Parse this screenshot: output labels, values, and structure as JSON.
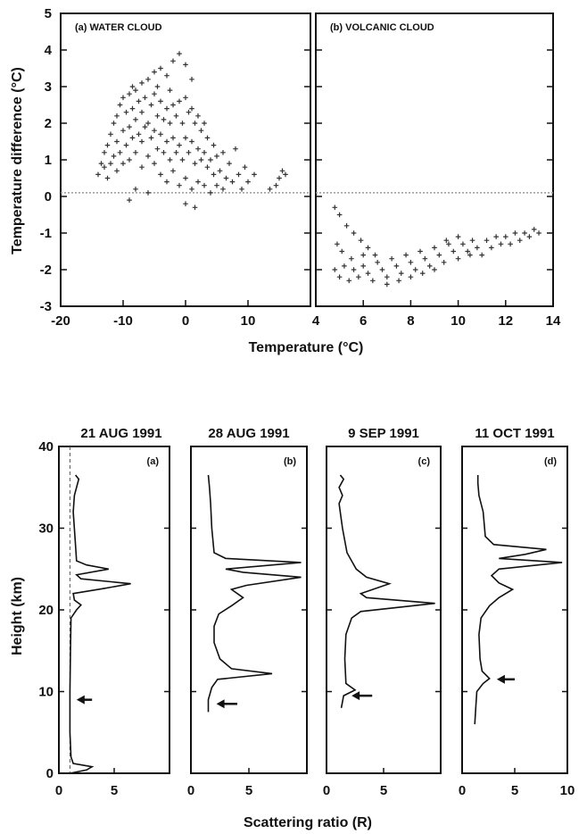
{
  "chart_data": [
    {
      "type": "scatter",
      "panel": "(a) WATER CLOUD",
      "xlim": [
        -20,
        20
      ],
      "ylim": [
        -3,
        5
      ],
      "xticks": [
        "-20",
        "-10",
        "0",
        "10"
      ],
      "yticks": [
        "-3",
        "-2",
        "-1",
        "0",
        "1",
        "2",
        "3",
        "4",
        "5"
      ],
      "xlabel": "Temperature (°C)",
      "ylabel": "Temperature difference (°C)",
      "reference_line_y": 0.1,
      "points": [
        [
          -14,
          0.6
        ],
        [
          -13.5,
          0.9
        ],
        [
          -13,
          0.8
        ],
        [
          -13,
          1.2
        ],
        [
          -12.5,
          0.5
        ],
        [
          -12.5,
          1.4
        ],
        [
          -12,
          0.9
        ],
        [
          -12,
          1.7
        ],
        [
          -11.5,
          1.1
        ],
        [
          -11.5,
          2.0
        ],
        [
          -11,
          0.7
        ],
        [
          -11,
          1.5
        ],
        [
          -11,
          2.2
        ],
        [
          -10.5,
          1.2
        ],
        [
          -10.5,
          2.5
        ],
        [
          -10,
          0.9
        ],
        [
          -10,
          1.8
        ],
        [
          -10,
          2.7
        ],
        [
          -9.5,
          1.4
        ],
        [
          -9.5,
          2.3
        ],
        [
          -9,
          1.0
        ],
        [
          -9,
          1.9
        ],
        [
          -9,
          2.8
        ],
        [
          -8.5,
          1.6
        ],
        [
          -8.5,
          2.4
        ],
        [
          -8.5,
          3.0
        ],
        [
          -8,
          0.2
        ],
        [
          -8,
          1.2
        ],
        [
          -8,
          2.1
        ],
        [
          -8,
          2.9
        ],
        [
          -7.5,
          1.7
        ],
        [
          -7.5,
          2.6
        ],
        [
          -7,
          0.8
        ],
        [
          -7,
          1.5
        ],
        [
          -7,
          2.3
        ],
        [
          -7,
          3.1
        ],
        [
          -6.5,
          1.9
        ],
        [
          -6.5,
          2.7
        ],
        [
          -6,
          1.1
        ],
        [
          -6,
          2.0
        ],
        [
          -6,
          3.2
        ],
        [
          -5.5,
          1.6
        ],
        [
          -5.5,
          2.5
        ],
        [
          -5,
          0.9
        ],
        [
          -5,
          1.8
        ],
        [
          -5,
          2.8
        ],
        [
          -5,
          3.4
        ],
        [
          -4.5,
          1.3
        ],
        [
          -4.5,
          2.2
        ],
        [
          -4.5,
          3.0
        ],
        [
          -4,
          0.6
        ],
        [
          -4,
          1.7
        ],
        [
          -4,
          2.6
        ],
        [
          -4,
          3.5
        ],
        [
          -3.5,
          1.2
        ],
        [
          -3.5,
          2.1
        ],
        [
          -3,
          0.4
        ],
        [
          -3,
          1.5
        ],
        [
          -3,
          2.4
        ],
        [
          -3,
          3.3
        ],
        [
          -2.5,
          1.0
        ],
        [
          -2.5,
          2.0
        ],
        [
          -2.5,
          2.9
        ],
        [
          -2,
          0.7
        ],
        [
          -2,
          1.6
        ],
        [
          -2,
          2.5
        ],
        [
          -2,
          3.7
        ],
        [
          -1.5,
          1.2
        ],
        [
          -1.5,
          2.2
        ],
        [
          -1,
          0.3
        ],
        [
          -1,
          1.4
        ],
        [
          -1,
          2.6
        ],
        [
          -1,
          3.9
        ],
        [
          -0.5,
          1.0
        ],
        [
          -0.5,
          2.0
        ],
        [
          0,
          0.5
        ],
        [
          0,
          1.6
        ],
        [
          0,
          2.7
        ],
        [
          0,
          3.6
        ],
        [
          0.5,
          1.2
        ],
        [
          0.5,
          2.3
        ],
        [
          1,
          0.2
        ],
        [
          1,
          1.5
        ],
        [
          1,
          2.4
        ],
        [
          1,
          3.2
        ],
        [
          1.5,
          0.9
        ],
        [
          1.5,
          2.0
        ],
        [
          2,
          0.4
        ],
        [
          2,
          1.3
        ],
        [
          2,
          2.2
        ],
        [
          2.5,
          1.0
        ],
        [
          2.5,
          1.8
        ],
        [
          3,
          0.3
        ],
        [
          3,
          1.2
        ],
        [
          3,
          2.0
        ],
        [
          3.5,
          0.8
        ],
        [
          3.5,
          1.6
        ],
        [
          4,
          0.1
        ],
        [
          4,
          1.0
        ],
        [
          4.5,
          0.6
        ],
        [
          4.5,
          1.4
        ],
        [
          5,
          0.3
        ],
        [
          5,
          1.1
        ],
        [
          5.5,
          0.7
        ],
        [
          6,
          0.2
        ],
        [
          6,
          1.2
        ],
        [
          6.5,
          0.5
        ],
        [
          7,
          0.9
        ],
        [
          7.5,
          0.4
        ],
        [
          8,
          1.3
        ],
        [
          8.5,
          0.6
        ],
        [
          9,
          0.2
        ],
        [
          9.5,
          0.8
        ],
        [
          10,
          0.4
        ],
        [
          11,
          0.6
        ],
        [
          -9,
          -0.1
        ],
        [
          0,
          -0.2
        ],
        [
          1.5,
          -0.3
        ],
        [
          14.5,
          0.3
        ],
        [
          15,
          0.5
        ],
        [
          15.5,
          0.7
        ],
        [
          16,
          0.6
        ],
        [
          13.5,
          0.2
        ],
        [
          -6,
          0.1
        ]
      ]
    },
    {
      "type": "scatter",
      "panel": "(b) VOLCANIC CLOUD",
      "xlim": [
        4,
        14
      ],
      "ylim": [
        -3,
        5
      ],
      "xticks": [
        "4",
        "6",
        "8",
        "10",
        "12",
        "14"
      ],
      "xlabel": "Temperature (°C)",
      "reference_line_y": 0.1,
      "points": [
        [
          4.8,
          -0.3
        ],
        [
          5,
          -0.5
        ],
        [
          5.3,
          -0.8
        ],
        [
          5.6,
          -1.0
        ],
        [
          5.9,
          -1.2
        ],
        [
          6.2,
          -1.4
        ],
        [
          6.5,
          -1.6
        ],
        [
          4.9,
          -1.3
        ],
        [
          5.1,
          -1.5
        ],
        [
          4.8,
          -2.0
        ],
        [
          5,
          -2.2
        ],
        [
          5.2,
          -1.9
        ],
        [
          5.4,
          -2.3
        ],
        [
          5.6,
          -2.0
        ],
        [
          5.8,
          -2.2
        ],
        [
          6,
          -1.9
        ],
        [
          6.2,
          -2.1
        ],
        [
          6.4,
          -2.3
        ],
        [
          6.6,
          -1.8
        ],
        [
          6.8,
          -2.0
        ],
        [
          7,
          -2.2
        ],
        [
          7.2,
          -1.7
        ],
        [
          7.4,
          -1.9
        ],
        [
          7.6,
          -2.1
        ],
        [
          7.8,
          -1.6
        ],
        [
          8,
          -1.8
        ],
        [
          8.2,
          -2.0
        ],
        [
          8.4,
          -1.5
        ],
        [
          8.6,
          -1.7
        ],
        [
          8.8,
          -1.9
        ],
        [
          9,
          -1.4
        ],
        [
          9.2,
          -1.6
        ],
        [
          9.4,
          -1.8
        ],
        [
          9.6,
          -1.3
        ],
        [
          9.8,
          -1.5
        ],
        [
          10,
          -1.7
        ],
        [
          10.2,
          -1.3
        ],
        [
          10.4,
          -1.5
        ],
        [
          10.6,
          -1.2
        ],
        [
          10.8,
          -1.4
        ],
        [
          11,
          -1.6
        ],
        [
          11.2,
          -1.2
        ],
        [
          11.4,
          -1.4
        ],
        [
          11.6,
          -1.1
        ],
        [
          11.8,
          -1.3
        ],
        [
          12,
          -1.1
        ],
        [
          12.2,
          -1.3
        ],
        [
          12.4,
          -1.0
        ],
        [
          12.6,
          -1.2
        ],
        [
          12.8,
          -1.0
        ],
        [
          13,
          -1.1
        ],
        [
          13.2,
          -0.9
        ],
        [
          13.4,
          -1.0
        ],
        [
          7.0,
          -2.4
        ],
        [
          7.5,
          -2.3
        ],
        [
          8.0,
          -2.2
        ],
        [
          8.5,
          -2.1
        ],
        [
          9.0,
          -2.0
        ],
        [
          5.5,
          -1.7
        ],
        [
          6.0,
          -1.6
        ],
        [
          9.5,
          -1.2
        ],
        [
          10.0,
          -1.1
        ],
        [
          10.5,
          -1.6
        ]
      ]
    },
    {
      "type": "line",
      "panel": "(a)",
      "title": "21 AUG 1991",
      "xlim": [
        0,
        10
      ],
      "ylim": [
        0,
        40
      ],
      "xticks": [
        "0",
        "5"
      ],
      "yticks": [
        "0",
        "10",
        "20",
        "30",
        "40"
      ],
      "ylabel": "Height (km)",
      "reference_line_x": 1,
      "arrow": {
        "x_from": 3,
        "x_to": 1.6,
        "y": 9
      },
      "profile": [
        [
          1,
          0
        ],
        [
          2.5,
          0.4
        ],
        [
          3,
          0.8
        ],
        [
          1.3,
          1.2
        ],
        [
          1.1,
          2
        ],
        [
          1,
          5
        ],
        [
          1,
          10
        ],
        [
          1.05,
          15
        ],
        [
          1.1,
          19
        ],
        [
          1.6,
          20
        ],
        [
          2,
          20.6
        ],
        [
          1.4,
          21.2
        ],
        [
          1.3,
          22
        ],
        [
          4,
          22.6
        ],
        [
          6.5,
          23.2
        ],
        [
          2,
          23.8
        ],
        [
          1.6,
          24.3
        ],
        [
          4.5,
          25
        ],
        [
          2.5,
          25.5
        ],
        [
          1.6,
          26
        ],
        [
          1.5,
          28
        ],
        [
          1.3,
          32
        ],
        [
          1.4,
          34
        ],
        [
          1.6,
          35
        ],
        [
          1.8,
          36
        ],
        [
          1.5,
          36.5
        ]
      ]
    },
    {
      "type": "line",
      "panel": "(b)",
      "title": "28 AUG 1991",
      "xlim": [
        0,
        10
      ],
      "ylim": [
        0,
        40
      ],
      "xticks": [
        "0",
        "5"
      ],
      "arrow": {
        "x_from": 4,
        "x_to": 2.2,
        "y": 8.5
      },
      "profile": [
        [
          1.5,
          7.5
        ],
        [
          1.5,
          9
        ],
        [
          1.8,
          10.5
        ],
        [
          2.3,
          11.5
        ],
        [
          7,
          12.2
        ],
        [
          3.5,
          12.8
        ],
        [
          2.5,
          14
        ],
        [
          2,
          16
        ],
        [
          2,
          18
        ],
        [
          2.4,
          19.5
        ],
        [
          3.5,
          20.5
        ],
        [
          4.5,
          21.5
        ],
        [
          3.5,
          22.5
        ],
        [
          4.8,
          23
        ],
        [
          9.5,
          24
        ],
        [
          4.5,
          24.6
        ],
        [
          3,
          25
        ],
        [
          9.5,
          25.8
        ],
        [
          3,
          26.3
        ],
        [
          2,
          27
        ],
        [
          1.8,
          30
        ],
        [
          1.7,
          33
        ],
        [
          1.6,
          35
        ],
        [
          1.5,
          36.5
        ]
      ]
    },
    {
      "type": "line",
      "panel": "(c)",
      "title": "9 SEP 1991",
      "xlim": [
        0,
        10
      ],
      "ylim": [
        0,
        40
      ],
      "xticks": [
        "0",
        "5"
      ],
      "arrow": {
        "x_from": 4,
        "x_to": 2.2,
        "y": 9.5
      },
      "profile": [
        [
          1.3,
          8
        ],
        [
          1.5,
          9.5
        ],
        [
          2.5,
          10.2
        ],
        [
          1.7,
          11
        ],
        [
          1.6,
          14
        ],
        [
          1.7,
          17
        ],
        [
          2.2,
          19
        ],
        [
          3,
          19.8
        ],
        [
          9.5,
          20.8
        ],
        [
          3.5,
          21.5
        ],
        [
          3,
          22
        ],
        [
          5.5,
          23.2
        ],
        [
          3.5,
          24
        ],
        [
          2.6,
          25
        ],
        [
          1.8,
          27
        ],
        [
          1.4,
          30
        ],
        [
          1.1,
          33
        ],
        [
          1.4,
          34
        ],
        [
          1.1,
          35
        ],
        [
          1.5,
          36
        ],
        [
          1.2,
          36.5
        ]
      ]
    },
    {
      "type": "line",
      "panel": "(d)",
      "title": "11 OCT 1991",
      "xlim": [
        0,
        10
      ],
      "ylim": [
        0,
        40
      ],
      "xticks": [
        "0",
        "5",
        "10"
      ],
      "arrow": {
        "x_from": 5,
        "x_to": 3.3,
        "y": 11.5
      },
      "profile": [
        [
          1.2,
          6
        ],
        [
          1.3,
          8
        ],
        [
          1.4,
          10
        ],
        [
          2,
          11
        ],
        [
          2.6,
          11.6
        ],
        [
          1.9,
          12.5
        ],
        [
          1.7,
          14
        ],
        [
          1.6,
          17
        ],
        [
          1.8,
          19
        ],
        [
          2.6,
          20.5
        ],
        [
          3.5,
          21.5
        ],
        [
          4.8,
          22.5
        ],
        [
          3.5,
          23.3
        ],
        [
          2.8,
          24.2
        ],
        [
          3.5,
          25
        ],
        [
          9.5,
          25.8
        ],
        [
          3.5,
          26.3
        ],
        [
          6,
          26.8
        ],
        [
          8,
          27.4
        ],
        [
          3,
          28
        ],
        [
          2.2,
          29
        ],
        [
          2,
          32
        ],
        [
          1.6,
          34
        ],
        [
          1.5,
          35.5
        ],
        [
          1.5,
          36.5
        ]
      ]
    }
  ],
  "upper": {
    "panel_a_label": "(a) WATER CLOUD",
    "panel_b_label": "(b) VOLCANIC CLOUD",
    "ylabel": "Temperature difference (°C)",
    "xlabel": "Temperature (°C)",
    "a_xticks": [
      "-20",
      "-10",
      "0",
      "10"
    ],
    "b_xticks": [
      "4",
      "6",
      "8",
      "10",
      "12",
      "14"
    ],
    "yticks": [
      "-3",
      "-2",
      "-1",
      "0",
      "1",
      "2",
      "3",
      "4",
      "5"
    ]
  },
  "lower": {
    "ylabel": "Height (km)",
    "xlabel": "Scattering ratio (R)",
    "yticks": [
      "0",
      "10",
      "20",
      "30",
      "40"
    ],
    "panels": [
      {
        "title": "21 AUG 1991",
        "label": "(a)",
        "xticks": [
          "0",
          "5"
        ]
      },
      {
        "title": "28 AUG 1991",
        "label": "(b)",
        "xticks": [
          "0",
          "5"
        ]
      },
      {
        "title": "9 SEP 1991",
        "label": "(c)",
        "xticks": [
          "0",
          "5"
        ]
      },
      {
        "title": "11 OCT 1991",
        "label": "(d)",
        "xticks": [
          "0",
          "5",
          "10"
        ]
      }
    ]
  }
}
